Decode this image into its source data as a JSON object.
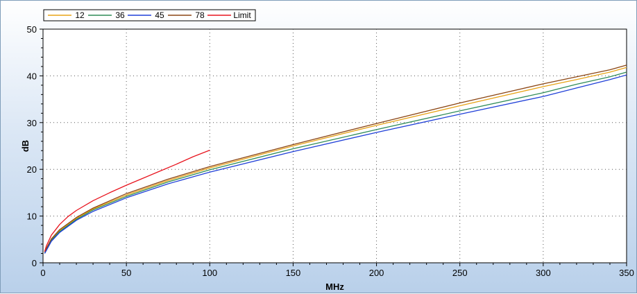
{
  "colors": {
    "panel_bg_top": "#ffffff",
    "panel_bg_bottom": "#b9d0ea",
    "plot_bg": "#ffffff",
    "grid": "#555555"
  },
  "chart_data": {
    "type": "line",
    "title": "",
    "xlabel": "MHz",
    "ylabel": "dB",
    "xlim": [
      0,
      350
    ],
    "ylim": [
      0,
      50
    ],
    "xticks": [
      0,
      50,
      100,
      150,
      200,
      250,
      300,
      350
    ],
    "yticks": [
      0,
      10,
      20,
      30,
      40,
      50
    ],
    "grid": true,
    "legend_position": "top-left",
    "series": [
      {
        "name": "12",
        "color": "#e8a317",
        "x": [
          1,
          5,
          10,
          20,
          30,
          50,
          75,
          100,
          150,
          200,
          250,
          300,
          320,
          340,
          350
        ],
        "y": [
          2.3,
          5.0,
          6.9,
          9.5,
          11.5,
          14.5,
          17.6,
          20.3,
          25.0,
          29.4,
          33.6,
          37.7,
          39.2,
          40.8,
          41.8
        ]
      },
      {
        "name": "36",
        "color": "#2e8b57",
        "x": [
          1,
          5,
          10,
          20,
          30,
          50,
          75,
          100,
          150,
          200,
          250,
          300,
          320,
          340,
          350
        ],
        "y": [
          2.1,
          4.8,
          6.7,
          9.3,
          11.3,
          14.2,
          17.3,
          19.9,
          24.4,
          28.5,
          32.5,
          36.4,
          38.2,
          39.8,
          40.8
        ]
      },
      {
        "name": "45",
        "color": "#1f3fd8",
        "x": [
          1,
          5,
          10,
          20,
          30,
          50,
          75,
          100,
          150,
          200,
          250,
          300,
          320,
          340,
          350
        ],
        "y": [
          2.0,
          4.6,
          6.5,
          9.1,
          11.0,
          13.9,
          16.9,
          19.4,
          23.8,
          27.9,
          31.8,
          35.6,
          37.4,
          39.2,
          40.2
        ]
      },
      {
        "name": "78",
        "color": "#8b4513",
        "x": [
          1,
          5,
          10,
          20,
          30,
          50,
          75,
          100,
          150,
          200,
          250,
          300,
          320,
          340,
          350
        ],
        "y": [
          2.4,
          5.1,
          7.1,
          9.7,
          11.7,
          14.8,
          17.9,
          20.6,
          25.3,
          29.8,
          34.2,
          38.3,
          39.8,
          41.3,
          42.3
        ]
      },
      {
        "name": "Limit",
        "color": "#e8141e",
        "x": [
          1,
          2,
          5,
          10,
          15,
          20,
          30,
          40,
          50,
          60,
          70,
          80,
          90,
          100
        ],
        "y": [
          2.4,
          3.6,
          5.9,
          8.2,
          9.9,
          11.2,
          13.3,
          15.0,
          16.6,
          18.1,
          19.6,
          21.1,
          22.7,
          24.1
        ]
      }
    ]
  }
}
